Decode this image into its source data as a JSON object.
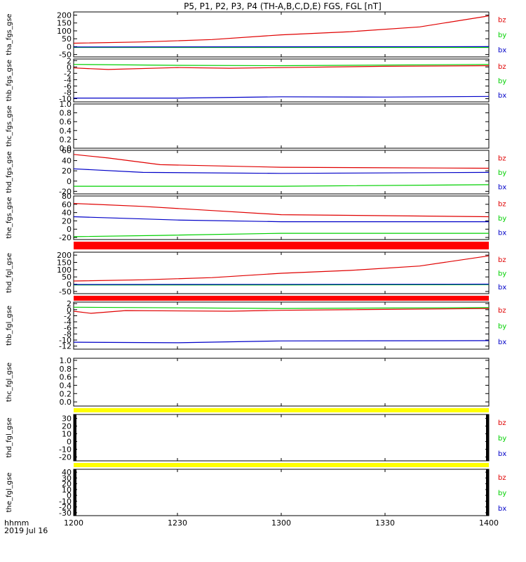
{
  "title": "P5, P1, P2, P3, P4 (TH-A,B,C,D,E) FGS, FGL [nT]",
  "footer": {
    "time_label": "hhmm",
    "date_label": "2019 Jul 16"
  },
  "colors": {
    "bz": "#e00000",
    "by": "#00d000",
    "bx": "#0000c8",
    "flag_red": "#ff0000",
    "flag_yellow": "#ffff00",
    "frame": "#000000"
  },
  "chart_data": {
    "type": "line",
    "x_axis": {
      "range": [
        1200,
        1400
      ],
      "ticks": [
        1200,
        1230,
        1300,
        1330,
        1400
      ],
      "tick_labels": [
        "1200",
        "1230",
        "1300",
        "1330",
        "1400"
      ]
    },
    "panels": [
      {
        "id": "tha_fgs_gse",
        "ylabel": "tha_fgs_gse",
        "ylim": [
          -65,
          220
        ],
        "yticks": [
          -50,
          0,
          50,
          100,
          150,
          200
        ],
        "legend": [
          "bz",
          "by",
          "bx"
        ],
        "series": [
          {
            "name": "bz",
            "x": [
              1200,
              1220,
              1240,
              1300,
              1320,
              1340,
              1400
            ],
            "values": [
              22,
              30,
              45,
              75,
              95,
              125,
              195
            ]
          },
          {
            "name": "by",
            "x": [
              1200,
              1300,
              1400
            ],
            "values": [
              -5,
              -5,
              -5
            ]
          },
          {
            "name": "bx",
            "x": [
              1200,
              1300,
              1400
            ],
            "values": [
              -2,
              -1,
              0
            ]
          }
        ]
      },
      {
        "id": "thb_fgs_gse",
        "ylabel": "thb_fgs_gse",
        "ylim": [
          -11,
          2.5
        ],
        "yticks": [
          -10,
          -8,
          -6,
          -4,
          -2,
          0,
          2
        ],
        "legend": [
          "bz",
          "by",
          "bx"
        ],
        "series": [
          {
            "name": "bz",
            "x": [
              1200,
              1210,
              1230,
              1245,
              1300,
              1330,
              1400
            ],
            "values": [
              -0.3,
              -0.8,
              -0.2,
              -0.4,
              -0.2,
              0.2,
              0.4
            ]
          },
          {
            "name": "by",
            "x": [
              1200,
              1230,
              1300,
              1400
            ],
            "values": [
              0.8,
              0.5,
              0.4,
              0.8
            ]
          },
          {
            "name": "bx",
            "x": [
              1200,
              1230,
              1300,
              1330,
              1400
            ],
            "values": [
              -9.8,
              -9.8,
              -9.4,
              -9.5,
              -9.3
            ]
          }
        ]
      },
      {
        "id": "thc_fgs_gse",
        "ylabel": "thc_fgs_gse",
        "ylim": [
          0,
          1
        ],
        "yticks": [
          0.0,
          0.2,
          0.4,
          0.6,
          0.8,
          1.0
        ],
        "series": []
      },
      {
        "id": "thd_fgs_gse",
        "ylabel": "thd_fgs_gse",
        "ylim": [
          -25,
          60
        ],
        "yticks": [
          -20,
          0,
          20,
          40,
          60
        ],
        "legend": [
          "bz",
          "by",
          "bx"
        ],
        "series": [
          {
            "name": "bz",
            "x": [
              1200,
              1210,
              1225,
              1300,
              1400
            ],
            "values": [
              52,
              45,
              32,
              27,
              25
            ]
          },
          {
            "name": "by",
            "x": [
              1200,
              1300,
              1400
            ],
            "values": [
              -10,
              -10,
              -7
            ]
          },
          {
            "name": "bx",
            "x": [
              1200,
              1220,
              1300,
              1400
            ],
            "values": [
              24,
              17,
              15,
              17
            ]
          }
        ]
      },
      {
        "id": "the_fgs_gse",
        "ylabel": "the_fgs_gse",
        "ylim": [
          -25,
          80
        ],
        "yticks": [
          -20,
          0,
          20,
          40,
          60,
          80
        ],
        "legend": [
          "bz",
          "by",
          "bx"
        ],
        "series": [
          {
            "name": "bz",
            "x": [
              1200,
              1220,
              1240,
              1300,
              1400
            ],
            "values": [
              62,
              55,
              45,
              35,
              30
            ]
          },
          {
            "name": "by",
            "x": [
              1200,
              1225,
              1300,
              1400
            ],
            "values": [
              -18,
              -15,
              -10,
              -10
            ]
          },
          {
            "name": "bx",
            "x": [
              1200,
              1230,
              1300,
              1400
            ],
            "values": [
              30,
              22,
              18,
              18
            ]
          }
        ]
      },
      {
        "id": "thd_fgl_gse",
        "ylabel": "thd_fgl_gse",
        "ylim": [
          -65,
          220
        ],
        "yticks": [
          -50,
          0,
          50,
          100,
          150,
          200
        ],
        "legend": [
          "bz",
          "by",
          "bx"
        ],
        "series": [
          {
            "name": "bz",
            "x": [
              1200,
              1220,
              1240,
              1300,
              1320,
              1340,
              1400
            ],
            "values": [
              22,
              30,
              45,
              75,
              95,
              125,
              195
            ]
          },
          {
            "name": "by",
            "x": [
              1200,
              1300,
              1400
            ],
            "values": [
              -5,
              -5,
              -3
            ]
          },
          {
            "name": "bx",
            "x": [
              1200,
              1300,
              1400
            ],
            "values": [
              -2,
              -1,
              0
            ]
          }
        ]
      },
      {
        "id": "thb_fgl_gse",
        "ylabel": "thb_fgl_gse",
        "ylim": [
          -13,
          2.5
        ],
        "yticks": [
          -12,
          -10,
          -8,
          -6,
          -4,
          -2,
          0,
          2
        ],
        "legend": [
          "bz",
          "by",
          "bx"
        ],
        "series": [
          {
            "name": "bz",
            "x": [
              1200,
              1205,
              1215,
              1245,
              1300,
              1400
            ],
            "values": [
              -0.5,
              -1.2,
              -0.3,
              -0.5,
              -0.2,
              0.4
            ]
          },
          {
            "name": "by",
            "x": [
              1200,
              1300,
              1400
            ],
            "values": [
              0.8,
              0.4,
              0.7
            ]
          },
          {
            "name": "bx",
            "x": [
              1200,
              1230,
              1300,
              1400
            ],
            "values": [
              -10.7,
              -10.9,
              -10.3,
              -10.2
            ]
          }
        ]
      },
      {
        "id": "thc_fgl_gse",
        "ylabel": "thc_fgl_gse",
        "ylim": [
          -0.1,
          1.05
        ],
        "yticks": [
          0.0,
          0.2,
          0.4,
          0.6,
          0.8,
          1.0
        ],
        "series": []
      },
      {
        "id": "thd_fgl_gse_2",
        "ylabel": "thd_fgl_gse",
        "ylim": [
          -25,
          35
        ],
        "yticks": [
          -20,
          -10,
          0,
          10,
          20,
          30
        ],
        "legend": [
          "bz",
          "by",
          "bx"
        ],
        "series": []
      },
      {
        "id": "the_fgl_gse",
        "ylabel": "the_fgl_gse",
        "ylim": [
          -35,
          45
        ],
        "yticks": [
          -30,
          -20,
          -10,
          0,
          10,
          20,
          30,
          40
        ],
        "legend": [
          "bz",
          "by",
          "bx"
        ],
        "series": []
      }
    ]
  }
}
